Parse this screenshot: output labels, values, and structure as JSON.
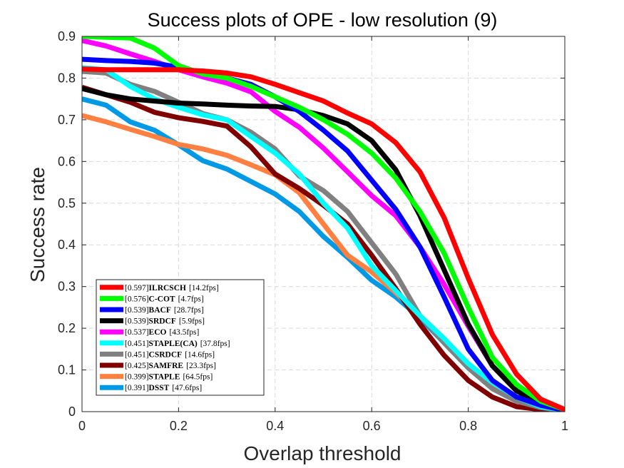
{
  "chart_data": {
    "type": "line",
    "title": "Success plots of OPE - low resolution (9)",
    "xlabel": "Overlap threshold",
    "ylabel": "Success rate",
    "xlim": [
      0,
      1
    ],
    "ylim": [
      0,
      0.9
    ],
    "x_ticks": [
      "0",
      "0.2",
      "0.4",
      "0.6",
      "0.8",
      "1"
    ],
    "y_ticks": [
      "0",
      "0.1",
      "0.2",
      "0.3",
      "0.4",
      "0.5",
      "0.6",
      "0.7",
      "0.8",
      "0.9"
    ],
    "grid": true,
    "legend_position": "bottom-left",
    "x": [
      0,
      0.05,
      0.1,
      0.15,
      0.2,
      0.25,
      0.3,
      0.35,
      0.4,
      0.45,
      0.5,
      0.55,
      0.6,
      0.65,
      0.7,
      0.75,
      0.8,
      0.85,
      0.9,
      0.95,
      1
    ],
    "series": [
      {
        "name": "ILRCSCH",
        "score": "[0.597]",
        "speed": "[14.2fps]",
        "color": "#ff0000",
        "values": [
          0.822,
          0.82,
          0.82,
          0.82,
          0.82,
          0.817,
          0.812,
          0.803,
          0.785,
          0.765,
          0.745,
          0.716,
          0.69,
          0.645,
          0.575,
          0.465,
          0.32,
          0.185,
          0.09,
          0.03,
          0.005
        ]
      },
      {
        "name": "C-COT",
        "score": "[0.576]",
        "speed": "[4.7fps]",
        "color": "#00ff00",
        "values": [
          0.9,
          0.898,
          0.896,
          0.872,
          0.83,
          0.81,
          0.8,
          0.78,
          0.755,
          0.73,
          0.7,
          0.665,
          0.62,
          0.56,
          0.48,
          0.38,
          0.25,
          0.13,
          0.065,
          0.025,
          0.005
        ]
      },
      {
        "name": "BACF",
        "score": "[0.539]",
        "speed": "[28.7fps]",
        "color": "#0000ff",
        "values": [
          0.845,
          0.842,
          0.84,
          0.836,
          0.826,
          0.812,
          0.8,
          0.785,
          0.755,
          0.72,
          0.675,
          0.625,
          0.555,
          0.485,
          0.395,
          0.275,
          0.15,
          0.075,
          0.035,
          0.015,
          0.003
        ]
      },
      {
        "name": "SRDCF",
        "score": "[0.539]",
        "speed": "[5.9fps]",
        "color": "#000000",
        "values": [
          0.775,
          0.76,
          0.75,
          0.745,
          0.74,
          0.738,
          0.735,
          0.733,
          0.732,
          0.724,
          0.71,
          0.69,
          0.65,
          0.58,
          0.47,
          0.34,
          0.21,
          0.11,
          0.05,
          0.018,
          0.004
        ]
      },
      {
        "name": "ECO",
        "score": "[0.537]",
        "speed": "[43.5fps]",
        "color": "#ff00ff",
        "values": [
          0.89,
          0.877,
          0.858,
          0.84,
          0.82,
          0.803,
          0.788,
          0.767,
          0.72,
          0.682,
          0.632,
          0.575,
          0.518,
          0.47,
          0.395,
          0.305,
          0.205,
          0.11,
          0.05,
          0.02,
          0.005
        ]
      },
      {
        "name": "STAPLE(CA)",
        "score": "[0.451]",
        "speed": "[37.8fps]",
        "color": "#00ffff",
        "values": [
          0.825,
          0.82,
          0.78,
          0.75,
          0.73,
          0.712,
          0.7,
          0.66,
          0.62,
          0.57,
          0.5,
          0.44,
          0.35,
          0.29,
          0.23,
          0.175,
          0.115,
          0.07,
          0.035,
          0.012,
          0.003
        ]
      },
      {
        "name": "CSRDCF",
        "score": "[0.451]",
        "speed": "[14.6fps]",
        "color": "#808080",
        "values": [
          0.816,
          0.812,
          0.785,
          0.768,
          0.742,
          0.715,
          0.7,
          0.67,
          0.63,
          0.565,
          0.53,
          0.48,
          0.405,
          0.33,
          0.23,
          0.165,
          0.105,
          0.055,
          0.025,
          0.01,
          0.002
        ]
      },
      {
        "name": "SAMFRE",
        "score": "[0.425]",
        "speed": "[23.3fps]",
        "color": "#800000",
        "values": [
          0.778,
          0.76,
          0.742,
          0.718,
          0.705,
          0.696,
          0.685,
          0.635,
          0.57,
          0.535,
          0.495,
          0.45,
          0.375,
          0.295,
          0.21,
          0.135,
          0.075,
          0.035,
          0.012,
          0.005,
          0.001
        ]
      },
      {
        "name": "STAPLE",
        "score": "[0.399]",
        "speed": "[64.5fps]",
        "color": "#ff8040",
        "values": [
          0.71,
          0.695,
          0.677,
          0.66,
          0.641,
          0.63,
          0.615,
          0.592,
          0.568,
          0.525,
          0.45,
          0.375,
          0.335,
          0.285,
          0.23,
          0.175,
          0.11,
          0.065,
          0.03,
          0.012,
          0.003
        ]
      },
      {
        "name": "DSST",
        "score": "[0.391]",
        "speed": "[47.6fps]",
        "color": "#0099e6",
        "values": [
          0.75,
          0.735,
          0.695,
          0.675,
          0.64,
          0.602,
          0.582,
          0.552,
          0.522,
          0.48,
          0.42,
          0.37,
          0.315,
          0.275,
          0.225,
          0.165,
          0.105,
          0.06,
          0.028,
          0.01,
          0.002
        ]
      }
    ]
  }
}
